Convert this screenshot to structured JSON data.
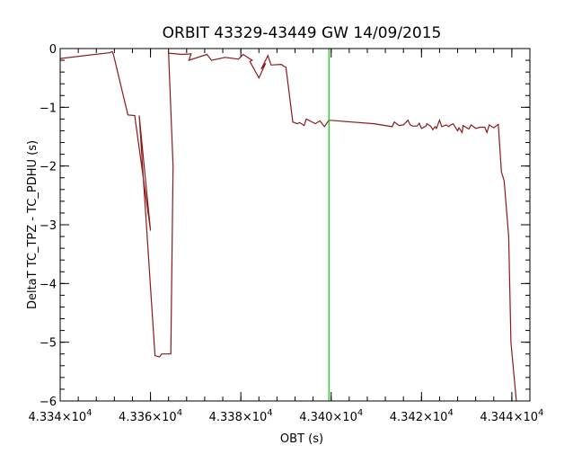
{
  "chart_data": {
    "type": "line",
    "title": "ORBIT 43329-43449 GW 14/09/2015",
    "xlabel": "OBT (s)",
    "ylabel": "DeltaT TC_TPZ - TC_PDHU (s)",
    "xlim": [
      43340,
      43444
    ],
    "ylim": [
      -6,
      0
    ],
    "x_ticks": [
      43340,
      43360,
      43380,
      43400,
      43420,
      43440
    ],
    "x_tick_labels": [
      {
        "mantissa": "4.334",
        "exp": "4"
      },
      {
        "mantissa": "4.336",
        "exp": "4"
      },
      {
        "mantissa": "4.338",
        "exp": "4"
      },
      {
        "mantissa": "4.340",
        "exp": "4"
      },
      {
        "mantissa": "4.342",
        "exp": "4"
      },
      {
        "mantissa": "4.344",
        "exp": "4"
      }
    ],
    "x_minor_step": 4,
    "y_ticks": [
      0,
      -1,
      -2,
      -3,
      -4,
      -5,
      -6
    ],
    "y_tick_labels": [
      "0",
      "−1",
      "−2",
      "−3",
      "−4",
      "−5",
      "−6"
    ],
    "y_minor_step": 0.2,
    "grid": false,
    "colors": {
      "series": "#8b1a1a",
      "marker": "#00cc00",
      "axes": "#000000"
    },
    "marker_line": {
      "x": 43399.5
    },
    "series": [
      {
        "x": [
          43340,
          43351,
          43351.5,
          43351.8,
          43355,
          43356.5,
          43360,
          43357.5,
          43361,
          43362,
          43362.5,
          43364.5,
          43365,
          43364,
          43367,
          43369,
          43368.5,
          43372.5,
          43373.5,
          43376.5,
          43379.5,
          43380.5,
          43382.5,
          43382,
          43384,
          43385.5,
          43384.5,
          43386,
          43386.7,
          43389,
          43389.5,
          43390,
          43391.5,
          43392.5,
          43393,
          43394,
          43394.5,
          43396.5,
          43397.5,
          43398.5,
          43399.5,
          43404.5,
          43409.5,
          43413.5,
          43414,
          43415,
          43416,
          43417,
          43417.5,
          43418,
          43419,
          43419.5,
          43420,
          43421,
          43421.2,
          43422,
          43422.5,
          43423,
          43423.3,
          43424,
          43424.5,
          43425.5,
          43426,
          43426.5,
          43427,
          43428,
          43428.3,
          43429,
          43429.2,
          43430.5,
          43431,
          43432,
          43433,
          43434,
          43434.5,
          43435,
          43436,
          43437,
          43437.7,
          43438.3
        ],
        "y": [
          -0.17,
          -0.07,
          -0.05,
          -0.1,
          -1.13,
          -1.14,
          -3.1,
          -1.14,
          -5.23,
          -5.25,
          -5.2,
          -5.2,
          -2.0,
          -0.08,
          -0.1,
          -0.09,
          -0.2,
          -0.1,
          -0.2,
          -0.15,
          -0.18,
          -0.1,
          -0.2,
          -0.22,
          -0.5,
          -0.25,
          -0.35,
          -0.12,
          -0.28,
          -0.27,
          -0.3,
          -0.32,
          -1.25,
          -1.28,
          -1.26,
          -1.31,
          -1.2,
          -1.28,
          -1.23,
          -1.33,
          -1.22,
          -1.25,
          -1.28,
          -1.33,
          -1.25,
          -1.31,
          -1.3,
          -1.22,
          -1.3,
          -1.32,
          -1.32,
          -1.27,
          -1.36,
          -1.32,
          -1.28,
          -1.32,
          -1.38,
          -1.33,
          -1.36,
          -1.22,
          -1.33,
          -1.3,
          -1.33,
          -1.3,
          -1.28,
          -1.4,
          -1.35,
          -1.43,
          -1.31,
          -1.37,
          -1.3,
          -1.36,
          -1.34,
          -1.34,
          -1.43,
          -1.3,
          -1.35,
          -1.29,
          -2.1,
          -2.25
        ]
      },
      {
        "x": [
          43438.3,
          43439.3,
          43439.8,
          43441
        ],
        "y": [
          -2.25,
          -3.2,
          -5.0,
          -6.0
        ]
      }
    ]
  }
}
